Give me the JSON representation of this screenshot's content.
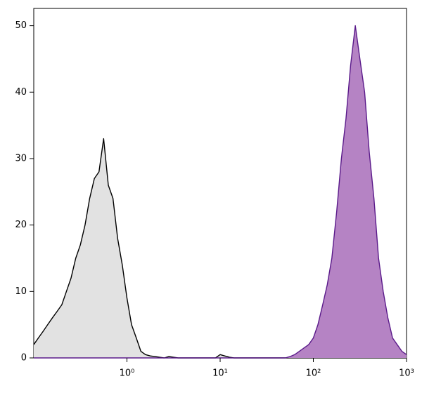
{
  "chart_data": {
    "type": "histogram-overlay",
    "x": [
      0.1,
      0.112,
      0.126,
      0.141,
      0.158,
      0.178,
      0.2,
      0.224,
      0.251,
      0.282,
      0.316,
      0.355,
      0.398,
      0.447,
      0.501,
      0.562,
      0.631,
      0.708,
      0.794,
      0.891,
      1,
      1.12,
      1.26,
      1.41,
      1.58,
      1.78,
      2,
      2.24,
      2.51,
      2.82,
      3.16,
      3.55,
      3.98,
      4.47,
      5.01,
      5.62,
      6.31,
      7.08,
      7.94,
      8.91,
      10,
      11.2,
      12.6,
      14.1,
      15.8,
      17.8,
      20,
      22.4,
      25.1,
      28.2,
      31.6,
      35.5,
      39.8,
      44.7,
      50.1,
      56.2,
      63.1,
      70.8,
      79.4,
      89.1,
      100,
      112,
      126,
      141,
      158,
      178,
      200,
      224,
      251,
      282,
      316,
      355,
      398,
      447,
      501,
      562,
      631,
      708,
      794,
      891,
      1000
    ],
    "series": [
      {
        "color": "#000000",
        "fill": "#e2e2e2",
        "values": [
          2,
          3,
          4,
          5,
          6,
          7,
          8,
          10,
          12,
          15,
          17,
          20,
          24,
          27,
          28,
          33,
          26,
          24,
          18,
          14,
          9,
          5,
          3,
          1,
          0.5,
          0.3,
          0.2,
          0.1,
          0,
          0.2,
          0.1,
          0,
          0,
          0,
          0,
          0,
          0,
          0,
          0,
          0,
          0.5,
          0.3,
          0.1,
          0,
          0,
          0,
          0,
          0,
          0,
          0,
          0,
          0,
          0,
          0,
          0,
          0,
          0,
          0,
          0,
          0,
          0,
          0,
          0,
          0,
          0,
          0,
          0,
          0,
          0,
          0,
          0,
          0,
          0,
          0,
          0,
          0,
          0,
          0,
          0,
          0,
          0
        ]
      },
      {
        "color": "#5a1a8a",
        "fill": "#b583c4",
        "values": [
          0,
          0,
          0,
          0,
          0,
          0,
          0,
          0,
          0,
          0,
          0,
          0,
          0,
          0,
          0,
          0,
          0,
          0,
          0,
          0,
          0,
          0,
          0,
          0,
          0,
          0,
          0,
          0,
          0,
          0,
          0,
          0,
          0,
          0,
          0,
          0,
          0,
          0,
          0,
          0,
          0,
          0,
          0,
          0,
          0,
          0,
          0,
          0,
          0,
          0,
          0,
          0,
          0,
          0,
          0,
          0.2,
          0.5,
          1,
          1.5,
          2,
          3,
          5,
          8,
          11,
          15,
          22,
          30,
          36,
          44,
          50,
          45,
          40,
          31,
          24,
          15,
          10,
          6,
          3,
          2,
          1,
          0.5
        ]
      }
    ],
    "xscale": "log",
    "xlim": [
      0.1,
      1000
    ],
    "xticks": [
      {
        "value": 1,
        "label": "10⁰"
      },
      {
        "value": 10,
        "label": "10¹"
      },
      {
        "value": 100,
        "label": "10²"
      },
      {
        "value": 1000,
        "label": "10³"
      }
    ],
    "ylim": [
      0,
      52.6
    ],
    "yticks": [
      0,
      10,
      20,
      30,
      40,
      50
    ]
  }
}
